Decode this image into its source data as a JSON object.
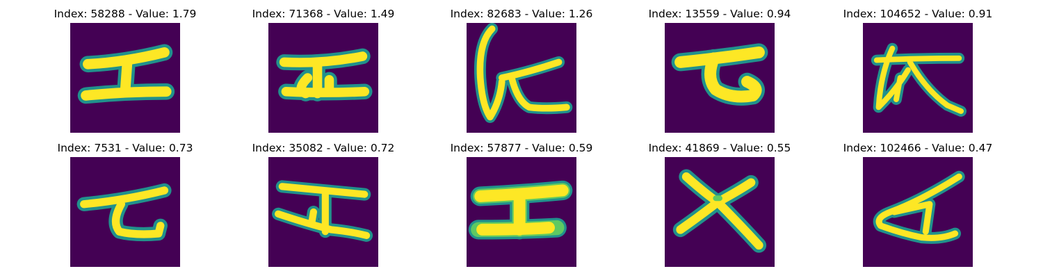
{
  "colors": {
    "background": "#440154",
    "edge": "#21918c",
    "mid": "#5ec962",
    "ink": "#fde725"
  },
  "panels": [
    {
      "title": "Index: 58288 - Value: 1.79"
    },
    {
      "title": "Index: 71368 - Value: 1.49"
    },
    {
      "title": "Index: 82683 - Value: 1.26"
    },
    {
      "title": "Index: 13559 - Value: 0.94"
    },
    {
      "title": "Index: 104652 - Value: 0.91"
    },
    {
      "title": "Index: 7531 - Value: 0.73"
    },
    {
      "title": "Index: 35082 - Value: 0.72"
    },
    {
      "title": "Index: 57877 - Value: 0.59"
    },
    {
      "title": "Index: 41869 - Value: 0.55"
    },
    {
      "title": "Index: 102466 - Value: 0.47"
    }
  ]
}
